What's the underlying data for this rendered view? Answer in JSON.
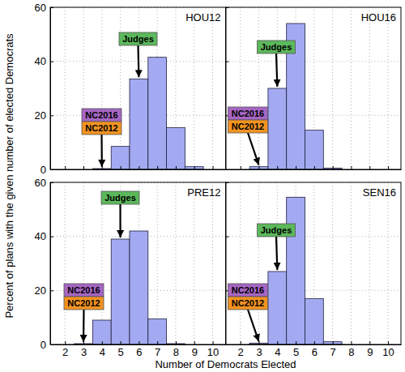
{
  "chart_data": [
    {
      "type": "histogram",
      "title": "HOU12",
      "bins": [
        1.5,
        2.5,
        3.5,
        4.5,
        5.5,
        6.5,
        7.5,
        8.5,
        9.5,
        10.5
      ],
      "values": [
        0,
        0,
        0.3,
        8.5,
        33.5,
        41.5,
        15.5,
        1,
        0
      ],
      "color": "#a3aaf2",
      "xlim": [
        1.2,
        10.7
      ],
      "ylim": [
        0,
        60
      ],
      "xticks": [
        2,
        3,
        4,
        5,
        6,
        7,
        8,
        9,
        10
      ],
      "yticks": [
        0,
        20,
        40,
        60
      ],
      "grid": true,
      "tick_labels": "y",
      "annotations": [
        {
          "text": "Judges",
          "x": 6,
          "color": "#5cb85c"
        },
        {
          "text": "NC2016",
          "x": 4,
          "color": "#a666c4"
        },
        {
          "text": "NC2012",
          "x": 4,
          "color": "#f39321"
        }
      ]
    },
    {
      "type": "histogram",
      "title": "HOU16",
      "bins": [
        1.5,
        2.5,
        3.5,
        4.5,
        5.5,
        6.5,
        7.5,
        8.5,
        9.5,
        10.5
      ],
      "values": [
        0,
        1,
        30,
        54,
        14.5,
        0.5,
        0,
        0,
        0
      ],
      "color": "#a3aaf2",
      "xlim": [
        1.2,
        10.7
      ],
      "ylim": [
        0,
        60
      ],
      "xticks": [
        2,
        3,
        4,
        5,
        6,
        7,
        8,
        9,
        10
      ],
      "yticks": [
        0,
        20,
        40,
        60
      ],
      "grid": true,
      "tick_labels": false,
      "annotations": [
        {
          "text": "Judges",
          "x": 4,
          "color": "#5cb85c"
        },
        {
          "text": "NC2016",
          "x": 3,
          "color": "#a666c4"
        },
        {
          "text": "NC2012",
          "x": 3,
          "color": "#f39321"
        }
      ]
    },
    {
      "type": "histogram",
      "title": "PRE12",
      "bins": [
        1.5,
        2.5,
        3.5,
        4.5,
        5.5,
        6.5,
        7.5,
        8.5,
        9.5,
        10.5
      ],
      "values": [
        0,
        0.3,
        9,
        39,
        42,
        9.5,
        0.3,
        0,
        0
      ],
      "color": "#a3aaf2",
      "xlim": [
        1.2,
        10.7
      ],
      "ylim": [
        0,
        60
      ],
      "xticks": [
        2,
        3,
        4,
        5,
        6,
        7,
        8,
        9,
        10
      ],
      "yticks": [
        0,
        20,
        40,
        60
      ],
      "grid": true,
      "tick_labels": true,
      "annotations": [
        {
          "text": "Judges",
          "x": 5,
          "color": "#5cb85c"
        },
        {
          "text": "NC2016",
          "x": 3,
          "color": "#a666c4"
        },
        {
          "text": "NC2012",
          "x": 3,
          "color": "#f39321"
        }
      ]
    },
    {
      "type": "histogram",
      "title": "SEN16",
      "bins": [
        1.5,
        2.5,
        3.5,
        4.5,
        5.5,
        6.5,
        7.5,
        8.5,
        9.5,
        10.5
      ],
      "values": [
        0,
        0.5,
        27,
        54.5,
        17,
        1,
        0,
        0,
        0
      ],
      "color": "#a3aaf2",
      "xlim": [
        1.2,
        10.7
      ],
      "ylim": [
        0,
        60
      ],
      "xticks": [
        2,
        3,
        4,
        5,
        6,
        7,
        8,
        9,
        10
      ],
      "yticks": [
        0,
        20,
        40,
        60
      ],
      "grid": true,
      "tick_labels": "x",
      "annotations": [
        {
          "text": "Judges",
          "x": 4,
          "color": "#5cb85c"
        },
        {
          "text": "NC2016",
          "x": 3,
          "color": "#a666c4"
        },
        {
          "text": "NC2012",
          "x": 3,
          "color": "#f39321"
        }
      ]
    }
  ],
  "x_label": "Number of Democrats Elected",
  "y_label": "Percent of plans with the given number of elected Democrats"
}
